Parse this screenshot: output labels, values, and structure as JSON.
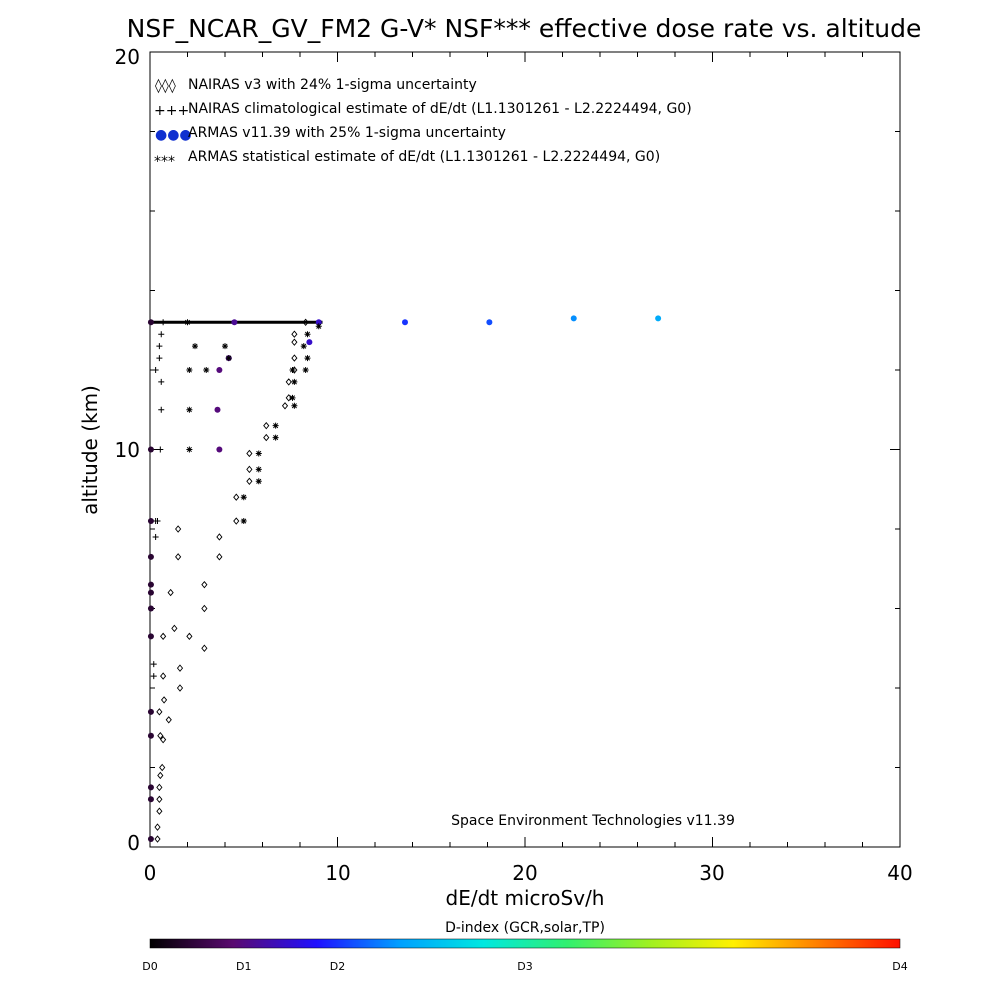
{
  "chart_data": {
    "type": "scatter",
    "title": "NSF_NCAR_GV_FM2 G-V* NSF*** effective dose rate vs. altitude",
    "xlabel": "dE/dt microSv/h",
    "ylabel": "altitude (km)",
    "xlim": [
      0,
      40
    ],
    "ylim": [
      0,
      20
    ],
    "x_ticks": [
      "0",
      "10",
      "20",
      "30",
      "40"
    ],
    "y_ticks": [
      "0",
      "10",
      "20"
    ],
    "credit": "Space Environment Technologies v11.39",
    "legend_position": "top-left",
    "legend": [
      {
        "symbol": "◊◊◊",
        "label": "NAIRAS v3 with 24% 1-sigma uncertainty"
      },
      {
        "symbol": "+++",
        "label": "NAIRAS climatological estimate of dE/dt (L1.1301261 - L2.2224494, G0)"
      },
      {
        "symbol": "●●●",
        "label": "ARMAS v11.39 with 25% 1-sigma uncertainty",
        "color": "#1030d0"
      },
      {
        "symbol": "***",
        "label": "ARMAS statistical estimate of dE/dt (L1.1301261 - L2.2224494, G0)"
      }
    ],
    "series": [
      {
        "name": "NAIRAS v3 with 24% 1-sigma uncertainty",
        "marker": "diamond",
        "points": [
          [
            0.4,
            0.2
          ],
          [
            0.4,
            0.5
          ],
          [
            0.5,
            0.9
          ],
          [
            0.5,
            1.2
          ],
          [
            0.5,
            1.5
          ],
          [
            0.55,
            1.8
          ],
          [
            0.65,
            2.0
          ],
          [
            0.7,
            2.7
          ],
          [
            0.55,
            2.8
          ],
          [
            1.0,
            3.2
          ],
          [
            0.5,
            3.4
          ],
          [
            0.75,
            3.7
          ],
          [
            1.6,
            4.0
          ],
          [
            0.7,
            4.3
          ],
          [
            1.6,
            4.5
          ],
          [
            2.1,
            5.3
          ],
          [
            0.7,
            5.3
          ],
          [
            2.9,
            5.0
          ],
          [
            1.3,
            5.5
          ],
          [
            1.1,
            6.4
          ],
          [
            2.9,
            6.0
          ],
          [
            2.9,
            6.6
          ],
          [
            1.5,
            7.3
          ],
          [
            3.7,
            7.3
          ],
          [
            1.5,
            8.0
          ],
          [
            3.7,
            7.8
          ],
          [
            4.6,
            8.2
          ],
          [
            4.6,
            8.8
          ],
          [
            5.3,
            9.2
          ],
          [
            5.3,
            9.5
          ],
          [
            5.3,
            9.9
          ],
          [
            6.2,
            10.3
          ],
          [
            6.2,
            10.6
          ],
          [
            7.2,
            11.1
          ],
          [
            7.4,
            11.3
          ],
          [
            7.4,
            11.7
          ],
          [
            7.7,
            12.0
          ],
          [
            7.7,
            12.3
          ],
          [
            7.7,
            12.7
          ],
          [
            7.7,
            12.9
          ],
          [
            8.3,
            13.2
          ]
        ]
      },
      {
        "name": "NAIRAS climatological estimate of dE/dt (L1.1301261 - L2.2224494, G0)",
        "marker": "plus",
        "points": [
          [
            0.2,
            4.3
          ],
          [
            0.2,
            4.6
          ],
          [
            0.3,
            7.8
          ],
          [
            0.3,
            8.2
          ],
          [
            0.4,
            8.2
          ],
          [
            0.55,
            10.0
          ],
          [
            0.6,
            11.0
          ],
          [
            0.6,
            11.7
          ],
          [
            0.3,
            12.0
          ],
          [
            0.5,
            12.3
          ],
          [
            0.5,
            12.6
          ],
          [
            0.6,
            12.9
          ],
          [
            0.7,
            13.2
          ]
        ]
      },
      {
        "name": "ARMAS v11.39 with 25% 1-sigma uncertainty",
        "marker": "dot",
        "points": [
          [
            0.05,
            13.2,
            0.05
          ],
          [
            0.05,
            10.0,
            0.05
          ],
          [
            0.05,
            8.2,
            0.05
          ],
          [
            0.05,
            7.3,
            0.05
          ],
          [
            0.05,
            6.6,
            0.05
          ],
          [
            0.05,
            6.4,
            0.05
          ],
          [
            0.05,
            6.0,
            0.05
          ],
          [
            0.05,
            5.3,
            0.05
          ],
          [
            0.05,
            3.4,
            0.05
          ],
          [
            0.05,
            2.8,
            0.05
          ],
          [
            0.05,
            1.5,
            0.05
          ],
          [
            0.05,
            1.2,
            0.05
          ],
          [
            0.05,
            0.2,
            0.05
          ],
          [
            3.7,
            12.0,
            0.12
          ],
          [
            3.6,
            11.0,
            0.12
          ],
          [
            3.7,
            10.0,
            0.12
          ],
          [
            4.2,
            12.3,
            0.13
          ],
          [
            4.5,
            13.2,
            0.14
          ],
          [
            8.5,
            12.7,
            0.18
          ],
          [
            9.0,
            13.2,
            0.18
          ],
          [
            13.6,
            13.2,
            0.25
          ],
          [
            18.1,
            13.2,
            0.27
          ],
          [
            22.6,
            13.3,
            0.32
          ],
          [
            27.1,
            13.3,
            0.35
          ]
        ]
      },
      {
        "name": "ARMAS statistical estimate of dE/dt (L1.1301261 - L2.2224494, G0)",
        "marker": "asterisk",
        "points": [
          [
            2.1,
            10.0
          ],
          [
            2.1,
            11.0
          ],
          [
            2.1,
            12.0
          ],
          [
            2.4,
            12.6
          ],
          [
            2.0,
            13.2
          ],
          [
            3.0,
            12.0
          ],
          [
            4.0,
            12.6
          ],
          [
            4.2,
            12.3
          ],
          [
            5.0,
            8.2
          ],
          [
            5.0,
            8.8
          ],
          [
            5.8,
            9.2
          ],
          [
            5.8,
            9.5
          ],
          [
            5.8,
            9.9
          ],
          [
            6.7,
            10.3
          ],
          [
            6.7,
            10.6
          ],
          [
            7.7,
            11.1
          ],
          [
            7.6,
            11.3
          ],
          [
            7.7,
            11.7
          ],
          [
            7.6,
            12.0
          ],
          [
            8.3,
            12.0
          ],
          [
            8.4,
            12.3
          ],
          [
            8.2,
            12.6
          ],
          [
            8.4,
            12.9
          ],
          [
            9.0,
            13.1
          ]
        ]
      }
    ],
    "connector": {
      "y": 13.2,
      "x_from": 0,
      "x_to": 9.2
    },
    "colorbar": {
      "title": "D-index (GCR,solar,TP)",
      "labels": [
        {
          "text": "D0",
          "pos": 0.0
        },
        {
          "text": "D1",
          "pos": 0.125
        },
        {
          "text": "D2",
          "pos": 0.25
        },
        {
          "text": "D3",
          "pos": 0.5
        },
        {
          "text": "D4",
          "pos": 1.0
        }
      ],
      "stops": [
        "#000000",
        "#5a0a70",
        "#2010ff",
        "#00a0ff",
        "#00e8e0",
        "#30f070",
        "#a0f020",
        "#fff000",
        "#ff8000",
        "#ff1000"
      ]
    }
  }
}
